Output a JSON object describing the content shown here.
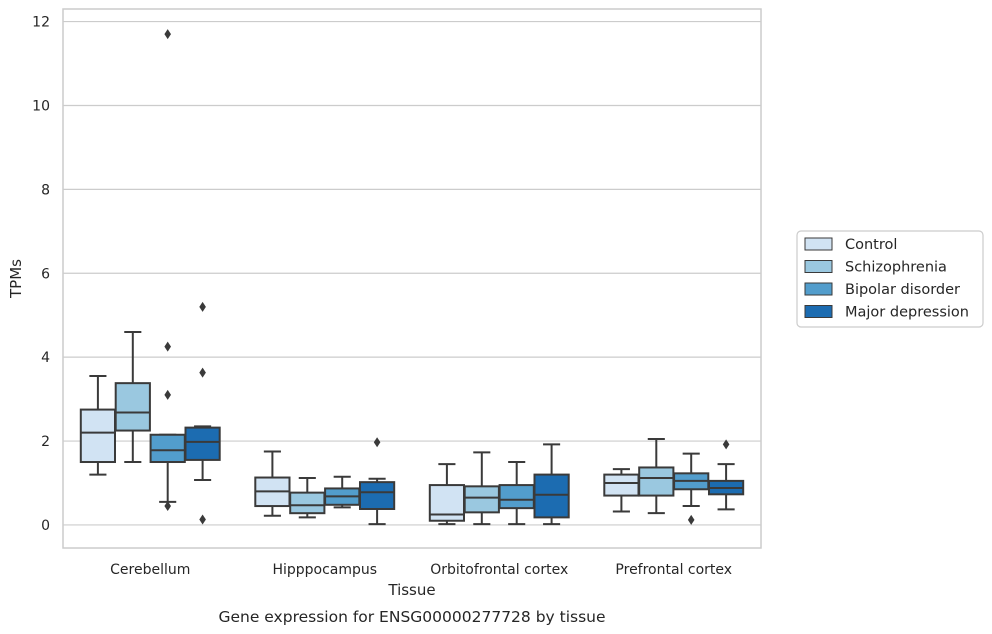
{
  "chart_data": {
    "type": "box",
    "xlabel": "Tissue",
    "ylabel": "TPMs",
    "caption": "Gene expression for ENSG00000277728 by tissue",
    "ylim": [
      -0.55,
      12.3
    ],
    "yticks": [
      0,
      2,
      4,
      6,
      8,
      10,
      12
    ],
    "grid": "horizontal",
    "legend_placement": "right-center",
    "categories": [
      "Cerebellum",
      "Hipppocampus",
      "Orbitofrontal cortex",
      "Prefrontal cortex"
    ],
    "series": [
      {
        "name": "Control",
        "color": "#d1e3f3",
        "boxes": [
          {
            "whisker_low": 1.2,
            "q1": 1.5,
            "median": 2.2,
            "q3": 2.75,
            "whisker_high": 3.55,
            "outliers": []
          },
          {
            "whisker_low": 0.22,
            "q1": 0.45,
            "median": 0.8,
            "q3": 1.13,
            "whisker_high": 1.75,
            "outliers": []
          },
          {
            "whisker_low": 0.02,
            "q1": 0.1,
            "median": 0.25,
            "q3": 0.95,
            "whisker_high": 1.45,
            "outliers": []
          },
          {
            "whisker_low": 0.32,
            "q1": 0.7,
            "median": 1.0,
            "q3": 1.2,
            "whisker_high": 1.33,
            "outliers": []
          }
        ]
      },
      {
        "name": "Schizophrenia",
        "color": "#9ac8e0",
        "boxes": [
          {
            "whisker_low": 1.5,
            "q1": 2.25,
            "median": 2.68,
            "q3": 3.38,
            "whisker_high": 4.6,
            "outliers": []
          },
          {
            "whisker_low": 0.18,
            "q1": 0.28,
            "median": 0.47,
            "q3": 0.77,
            "whisker_high": 1.12,
            "outliers": []
          },
          {
            "whisker_low": 0.02,
            "q1": 0.3,
            "median": 0.65,
            "q3": 0.92,
            "whisker_high": 1.73,
            "outliers": []
          },
          {
            "whisker_low": 0.28,
            "q1": 0.7,
            "median": 1.12,
            "q3": 1.37,
            "whisker_high": 2.05,
            "outliers": []
          }
        ]
      },
      {
        "name": "Bipolar disorder",
        "color": "#529dcc",
        "boxes": [
          {
            "whisker_low": 0.55,
            "q1": 1.5,
            "median": 1.78,
            "q3": 2.15,
            "whisker_high": 2.15,
            "outliers": [
              0.45,
              3.1,
              4.25,
              11.7
            ]
          },
          {
            "whisker_low": 0.42,
            "q1": 0.48,
            "median": 0.68,
            "q3": 0.87,
            "whisker_high": 1.15,
            "outliers": []
          },
          {
            "whisker_low": 0.02,
            "q1": 0.4,
            "median": 0.6,
            "q3": 0.95,
            "whisker_high": 1.5,
            "outliers": []
          },
          {
            "whisker_low": 0.45,
            "q1": 0.85,
            "median": 1.05,
            "q3": 1.23,
            "whisker_high": 1.7,
            "outliers": [
              0.12
            ]
          }
        ]
      },
      {
        "name": "Major depression",
        "color": "#1c6cb1",
        "boxes": [
          {
            "whisker_low": 1.07,
            "q1": 1.55,
            "median": 1.98,
            "q3": 2.32,
            "whisker_high": 2.35,
            "outliers": [
              0.13,
              3.63,
              5.2
            ]
          },
          {
            "whisker_low": 0.02,
            "q1": 0.38,
            "median": 0.78,
            "q3": 1.02,
            "whisker_high": 1.1,
            "outliers": [
              1.97
            ]
          },
          {
            "whisker_low": 0.02,
            "q1": 0.18,
            "median": 0.72,
            "q3": 1.2,
            "whisker_high": 1.92,
            "outliers": []
          },
          {
            "whisker_low": 0.37,
            "q1": 0.73,
            "median": 0.88,
            "q3": 1.05,
            "whisker_high": 1.45,
            "outliers": [
              1.92
            ]
          }
        ]
      }
    ]
  }
}
